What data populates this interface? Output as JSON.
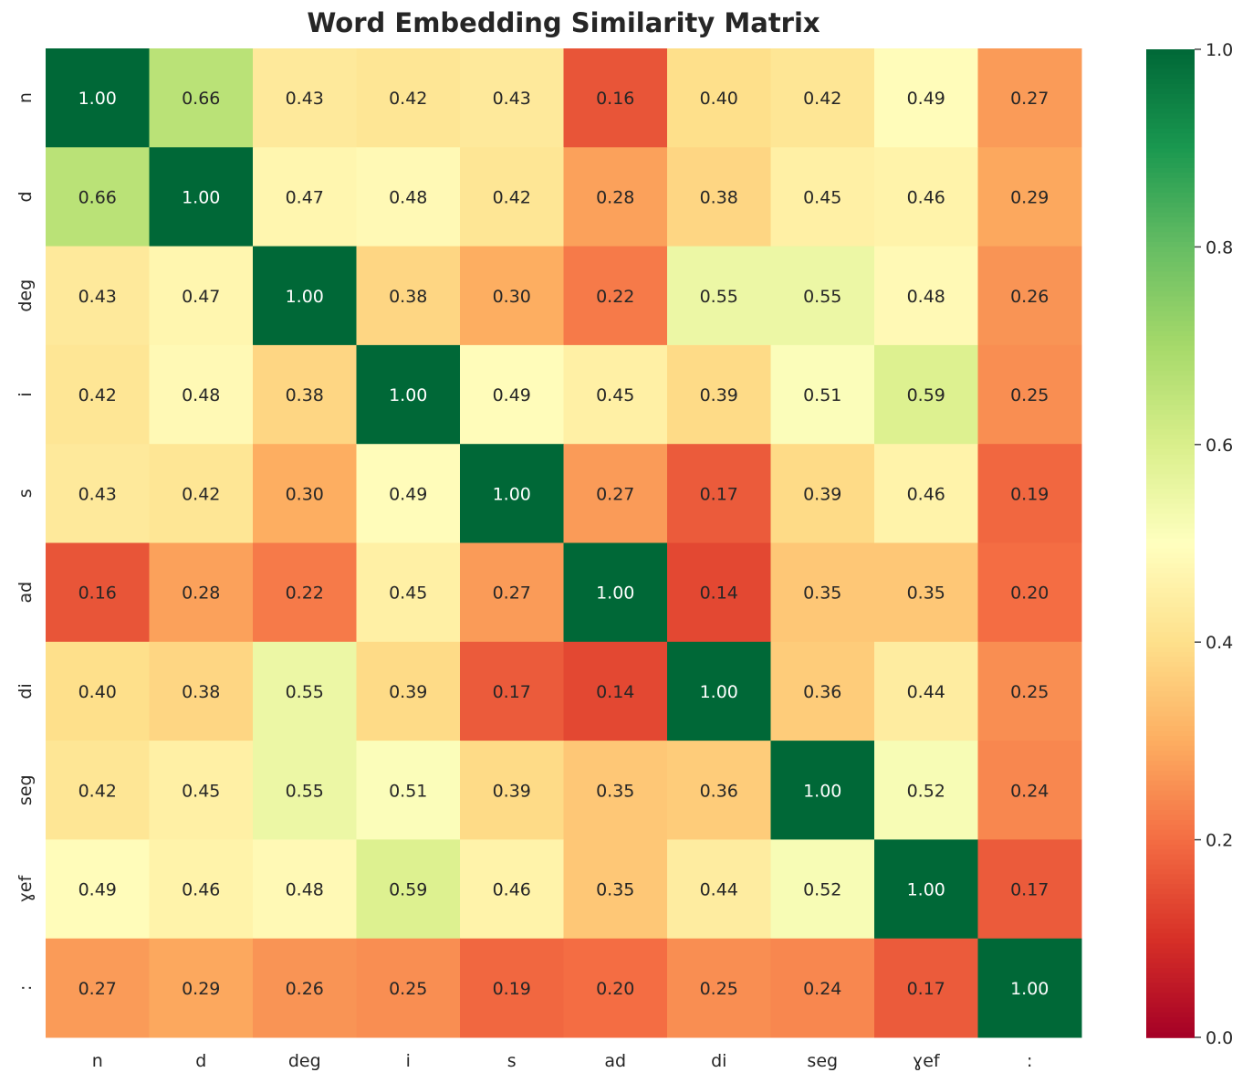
{
  "chart_data": {
    "type": "heatmap",
    "title": "Word Embedding Similarity Matrix",
    "x_labels": [
      "n",
      "d",
      "deg",
      "i",
      "s",
      "ad",
      "di",
      "seg",
      "ɣef",
      ":"
    ],
    "y_labels": [
      "n",
      "d",
      "deg",
      "i",
      "s",
      "ad",
      "di",
      "seg",
      "ɣef",
      ":"
    ],
    "values": [
      [
        1.0,
        0.66,
        0.43,
        0.42,
        0.43,
        0.16,
        0.4,
        0.42,
        0.49,
        0.27
      ],
      [
        0.66,
        1.0,
        0.47,
        0.48,
        0.42,
        0.28,
        0.38,
        0.45,
        0.46,
        0.29
      ],
      [
        0.43,
        0.47,
        1.0,
        0.38,
        0.3,
        0.22,
        0.55,
        0.55,
        0.48,
        0.26
      ],
      [
        0.42,
        0.48,
        0.38,
        1.0,
        0.49,
        0.45,
        0.39,
        0.51,
        0.59,
        0.25
      ],
      [
        0.43,
        0.42,
        0.3,
        0.49,
        1.0,
        0.27,
        0.17,
        0.39,
        0.46,
        0.19
      ],
      [
        0.16,
        0.28,
        0.22,
        0.45,
        0.27,
        1.0,
        0.14,
        0.35,
        0.35,
        0.2
      ],
      [
        0.4,
        0.38,
        0.55,
        0.39,
        0.17,
        0.14,
        1.0,
        0.36,
        0.44,
        0.25
      ],
      [
        0.42,
        0.45,
        0.55,
        0.51,
        0.39,
        0.35,
        0.36,
        1.0,
        0.52,
        0.24
      ],
      [
        0.49,
        0.46,
        0.48,
        0.59,
        0.46,
        0.35,
        0.44,
        0.52,
        1.0,
        0.17
      ],
      [
        0.27,
        0.29,
        0.26,
        0.25,
        0.19,
        0.2,
        0.25,
        0.24,
        0.17,
        1.0
      ]
    ],
    "colormap": "RdYlGn",
    "vmin": 0.0,
    "vmax": 1.0,
    "colorbar_ticks": [
      "0.0",
      "0.2",
      "0.4",
      "0.6",
      "0.8",
      "1.0"
    ]
  }
}
